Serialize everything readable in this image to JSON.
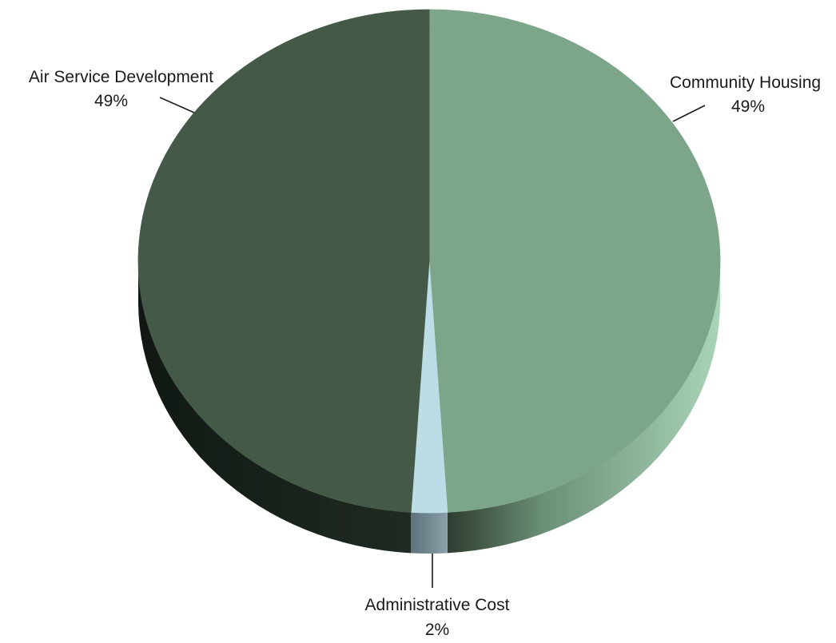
{
  "chart_data": {
    "type": "pie",
    "style": "3d",
    "title": "",
    "slices": [
      {
        "label": "Community Housing",
        "value": 49,
        "value_label": "49%",
        "color_top": "#7da58a",
        "color_side": "#a3cfb1"
      },
      {
        "label": "Administrative Cost",
        "value": 2,
        "value_label": "2%",
        "color_top": "#bcdde5",
        "color_side": "#6f8790"
      },
      {
        "label": "Air Service Development",
        "value": 49,
        "value_label": "49%",
        "color_top": "#445947",
        "color_side": "#1b251d"
      }
    ],
    "legend": "none",
    "labels": "outside-with-leader-lines"
  }
}
